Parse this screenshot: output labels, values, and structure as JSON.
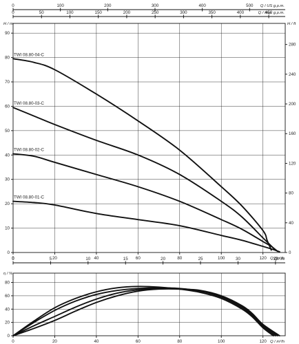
{
  "chart_data": {
    "type": "line",
    "top_axes": [
      {
        "label": "Q / US g.p.m.",
        "ticks": [
          "0",
          "100",
          "200",
          "300",
          "400",
          "500"
        ],
        "range": [
          0,
          575.3
        ]
      },
      {
        "label": "Q / Imp. g.p.m.",
        "ticks": [
          "0",
          "50",
          "100",
          "150",
          "200",
          "250",
          "300",
          "350",
          "400",
          "450"
        ],
        "range": [
          0,
          479
        ]
      }
    ],
    "x_axis": {
      "label": "Q / m³/h",
      "ticks": [
        0,
        20,
        40,
        60,
        80,
        100,
        120
      ],
      "range": [
        0,
        130.7
      ]
    },
    "x_axis_ls": {
      "label": "Q / l/s",
      "ticks": [
        0,
        5,
        10,
        15,
        20,
        25,
        30,
        35
      ],
      "range": [
        0,
        36.3
      ]
    },
    "head_chart": {
      "ylabel_left": "H / m",
      "ylabel_right": "H / ft",
      "ylim": [
        0,
        94
      ],
      "yticks_left": [
        0,
        10,
        20,
        30,
        40,
        50,
        60,
        70,
        80,
        90
      ],
      "yticks_right": [
        0,
        40,
        80,
        120,
        160,
        200,
        240,
        280
      ],
      "series": [
        {
          "name": "TWI 08.80-04-C",
          "x": [
            0,
            10,
            20,
            40,
            60,
            80,
            100,
            110,
            120,
            122,
            124
          ],
          "y": [
            79.5,
            78,
            75,
            65,
            54,
            42,
            27,
            19,
            9,
            5,
            1
          ]
        },
        {
          "name": "TWI 08.80-03-C",
          "x": [
            0,
            10,
            20,
            40,
            60,
            80,
            100,
            110,
            120,
            123,
            126
          ],
          "y": [
            59.5,
            56,
            52.5,
            46,
            40,
            32,
            21,
            14.5,
            6,
            3.5,
            1
          ]
        },
        {
          "name": "TWI 08.80-02-C",
          "x": [
            0,
            10,
            20,
            40,
            60,
            80,
            100,
            110,
            120,
            124,
            127
          ],
          "y": [
            40.5,
            39.5,
            37,
            32,
            27,
            21,
            13.5,
            9.5,
            4.5,
            2.5,
            0.5
          ]
        },
        {
          "name": "TWI 08.80-01-C",
          "x": [
            0,
            10,
            20,
            40,
            60,
            80,
            100,
            110,
            120,
            125,
            128
          ],
          "y": [
            21,
            20.5,
            19.5,
            16,
            13.5,
            11,
            7,
            5,
            2.5,
            1.2,
            0.3
          ]
        }
      ]
    },
    "efficiency_chart": {
      "ylabel": "η / %",
      "ylim": [
        0,
        94
      ],
      "yticks": [
        0,
        20,
        40,
        60,
        80
      ],
      "series": [
        {
          "x": [
            0,
            10,
            20,
            30,
            40,
            50,
            60,
            70,
            80,
            90,
            100,
            110,
            115,
            120,
            125
          ],
          "y": [
            0,
            22,
            42,
            56,
            66,
            72,
            74,
            73,
            70,
            65,
            56,
            40,
            28,
            12,
            0
          ]
        },
        {
          "x": [
            0,
            10,
            20,
            30,
            40,
            50,
            60,
            70,
            80,
            90,
            100,
            110,
            115,
            120,
            126
          ],
          "y": [
            0,
            20,
            38,
            52,
            62,
            68,
            71,
            72,
            71,
            67,
            58,
            42,
            30,
            14,
            0
          ]
        },
        {
          "x": [
            0,
            10,
            20,
            30,
            40,
            50,
            60,
            70,
            80,
            90,
            100,
            110,
            115,
            120,
            127
          ],
          "y": [
            0,
            15,
            29,
            43,
            55,
            64,
            69,
            71,
            70,
            67,
            59,
            44,
            32,
            16,
            0
          ]
        },
        {
          "x": [
            0,
            10,
            20,
            30,
            40,
            50,
            60,
            70,
            80,
            90,
            100,
            110,
            115,
            120,
            128
          ],
          "y": [
            0,
            11,
            23,
            37,
            50,
            60,
            67,
            70,
            70,
            68,
            60,
            45,
            33,
            17,
            0
          ]
        }
      ]
    }
  }
}
